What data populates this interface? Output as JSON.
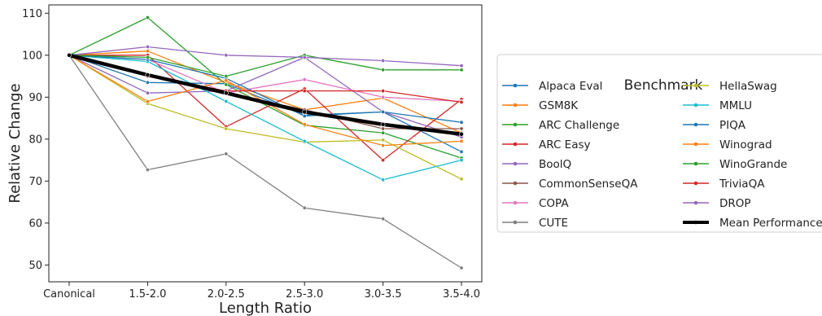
{
  "chart_data": {
    "type": "line",
    "xlabel": "Length Ratio",
    "ylabel": "Relative Change",
    "categories": [
      "Canonical",
      "1.5-2.0",
      "2.0-2.5",
      "2.5-3.0",
      "3.0-3.5",
      "3.5-4.0"
    ],
    "ylim": [
      46,
      112
    ],
    "yticks": [
      50,
      60,
      70,
      80,
      90,
      100,
      110
    ],
    "grid": false,
    "legend": {
      "title": "Benchmark",
      "placement": "right",
      "columns": 2
    },
    "series": [
      {
        "name": "Alpaca Eval",
        "color": "#1f77b4",
        "values": [
          100,
          93.5,
          93.2,
          85.7,
          86.5,
          77.0
        ]
      },
      {
        "name": "GSM8K",
        "color": "#ff7f0e",
        "values": [
          100,
          101.0,
          93.5,
          87.0,
          89.8,
          81.5
        ]
      },
      {
        "name": "ARC Challenge",
        "color": "#2ca02c",
        "values": [
          100,
          109.0,
          93.0,
          83.3,
          81.5,
          75.5
        ]
      },
      {
        "name": "ARC Easy",
        "color": "#d62728",
        "values": [
          100,
          100.0,
          83.0,
          92.0,
          75.0,
          89.5
        ]
      },
      {
        "name": "BoolQ",
        "color": "#9467bd",
        "values": [
          100,
          91.0,
          91.5,
          99.5,
          86.5,
          80.5
        ]
      },
      {
        "name": "CommonSenseQA",
        "color": "#8c564b",
        "values": [
          100,
          95.5,
          91.0,
          87.0,
          82.5,
          82.5
        ]
      },
      {
        "name": "COPA",
        "color": "#e377c2",
        "values": [
          100,
          99.0,
          91.0,
          94.2,
          90.0,
          89.0
        ]
      },
      {
        "name": "CUTE",
        "color": "#7f7f7f",
        "values": [
          100,
          72.7,
          76.5,
          63.6,
          61.0,
          49.3
        ]
      },
      {
        "name": "HellaSwag",
        "color": "#bcbd22",
        "values": [
          100,
          88.5,
          82.5,
          79.3,
          79.8,
          70.5
        ]
      },
      {
        "name": "MMLU",
        "color": "#17becf",
        "values": [
          100,
          98.5,
          89.0,
          79.5,
          70.3,
          75.0
        ]
      },
      {
        "name": "PIQA",
        "color": "#1f77b4",
        "values": [
          100,
          99.0,
          94.5,
          85.5,
          86.5,
          84.0
        ]
      },
      {
        "name": "Winograd",
        "color": "#ff7f0e",
        "values": [
          100,
          89.0,
          94.0,
          83.5,
          78.5,
          79.5
        ]
      },
      {
        "name": "WinoGrande",
        "color": "#2ca02c",
        "values": [
          100,
          99.5,
          95.0,
          100.0,
          96.5,
          96.5
        ]
      },
      {
        "name": "TriviaQA",
        "color": "#d62728",
        "values": [
          100,
          95.0,
          91.5,
          91.5,
          91.5,
          88.8
        ]
      },
      {
        "name": "DROP",
        "color": "#9467bd",
        "values": [
          100,
          102.0,
          100.0,
          99.5,
          98.7,
          97.5
        ]
      },
      {
        "name": "Mean Performance",
        "color": "#000000",
        "values": [
          100,
          95.3,
          91.0,
          86.5,
          83.5,
          81.2
        ]
      }
    ]
  }
}
